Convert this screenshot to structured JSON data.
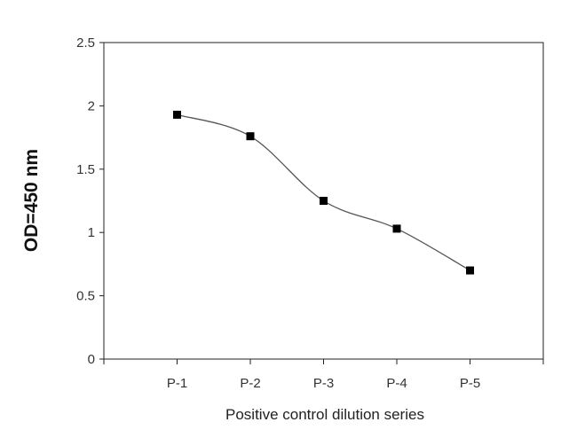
{
  "chart_data": {
    "type": "line",
    "title": "",
    "xlabel": "Positive control dilution series",
    "ylabel": "OD=450 nm",
    "categories": [
      "P-1",
      "P-2",
      "P-3",
      "P-4",
      "P-5"
    ],
    "series": [
      {
        "values": [
          1.93,
          1.76,
          1.25,
          1.03,
          0.7
        ]
      }
    ],
    "ylim": [
      0,
      2.5
    ],
    "yticks": [
      0,
      0.5,
      1,
      1.5,
      2,
      2.5
    ],
    "ytick_labels": [
      "0",
      "0.5",
      "1",
      "1.5",
      "2",
      "2.5"
    ],
    "xlim": [
      0,
      6
    ],
    "grid": false,
    "legend": "none",
    "line_style": "smooth",
    "marker": "square",
    "colors": {
      "line": "#555555",
      "marker": "#000000",
      "axis": "#222222",
      "frame": "#222222"
    }
  }
}
